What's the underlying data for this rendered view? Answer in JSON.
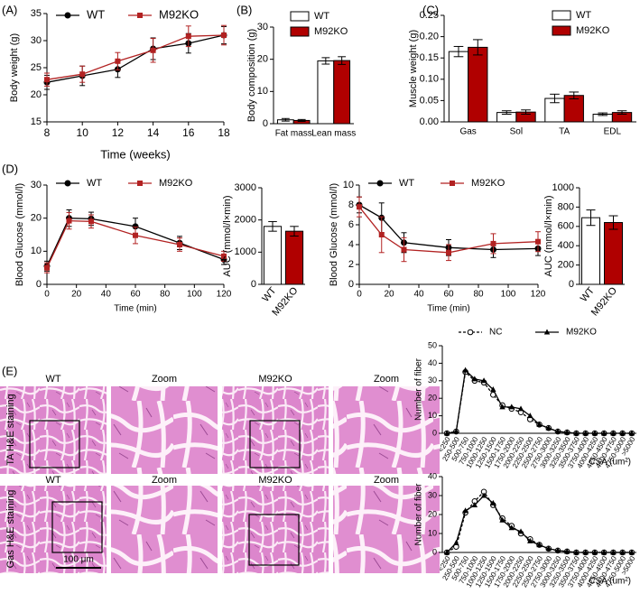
{
  "panel_labels": [
    "(A)",
    "(B)",
    "(C)",
    "(D)",
    "(E)"
  ],
  "histology": {
    "rows": [
      {
        "label": "TA H&E staining",
        "columns": [
          "WT",
          "Zoom",
          "M92KO",
          "Zoom"
        ]
      },
      {
        "label": "Gas H&E staining",
        "columns": [
          "WT",
          "Zoom",
          "M92KO",
          "Zoom"
        ]
      }
    ],
    "scale_bar": "100 μm"
  },
  "chart_data": [
    {
      "type": "line",
      "y_label": "Body weight (g)",
      "x_label": "Time (weeks)",
      "x": [
        8,
        10,
        12,
        14,
        16,
        18
      ],
      "xlim": [
        8,
        18
      ],
      "xticks": [
        8,
        10,
        12,
        14,
        16,
        18
      ],
      "ylim": [
        15,
        35
      ],
      "yticks": [
        15,
        20,
        25,
        30,
        35
      ],
      "legend": "top",
      "series": [
        {
          "name": "WT",
          "color": "#000000",
          "marker": "circle",
          "values": [
            22.3,
            23.5,
            24.7,
            28.5,
            29.5,
            31.0
          ],
          "errors": [
            1.3,
            1.8,
            1.5,
            2.0,
            1.8,
            1.6
          ]
        },
        {
          "name": "M92KO",
          "color": "#b22222",
          "marker": "square",
          "values": [
            22.8,
            23.8,
            26.2,
            28.2,
            30.8,
            31.0
          ],
          "errors": [
            1.2,
            1.5,
            1.6,
            2.2,
            1.9,
            1.8
          ]
        }
      ]
    },
    {
      "type": "bar",
      "y_label": "Body composition (g)",
      "categories": [
        "Fat mass",
        "Lean mass"
      ],
      "ylim": [
        0,
        30
      ],
      "yticks": [
        0,
        10,
        20,
        30
      ],
      "legend": "top",
      "series": [
        {
          "name": "WT",
          "color": "#ffffff",
          "values": [
            1.2,
            19.5
          ],
          "errors": [
            0.4,
            1.0
          ]
        },
        {
          "name": "M92KO",
          "color": "#b00000",
          "values": [
            1.0,
            19.6
          ],
          "errors": [
            0.3,
            1.2
          ]
        }
      ]
    },
    {
      "type": "bar",
      "y_label": "Muscle weight (g)",
      "categories": [
        "Gas",
        "Sol",
        "TA",
        "EDL"
      ],
      "ylim": [
        0,
        0.25
      ],
      "yticks": [
        {
          "value": 0,
          "label": "0.00"
        },
        0.05,
        {
          "value": 0.1,
          "label": "0.10"
        },
        0.15,
        {
          "value": 0.2,
          "label": "0.20"
        },
        0.25
      ],
      "legend": "top-right",
      "series": [
        {
          "name": "WT",
          "color": "#ffffff",
          "values": [
            0.165,
            0.022,
            0.055,
            0.018
          ],
          "errors": [
            0.012,
            0.004,
            0.01,
            0.003
          ]
        },
        {
          "name": "M92KO",
          "color": "#b00000",
          "values": [
            0.175,
            0.023,
            0.062,
            0.022
          ],
          "errors": [
            0.018,
            0.005,
            0.008,
            0.004
          ]
        }
      ]
    },
    {
      "type": "line",
      "y_label": "Blood Glucose (mmol/l)",
      "x_label": "Time (min)",
      "x": [
        0,
        15,
        30,
        60,
        90,
        120
      ],
      "xlim": [
        0,
        120
      ],
      "xticks": [
        0,
        20,
        40,
        60,
        80,
        100,
        120
      ],
      "ylim": [
        0,
        30
      ],
      "yticks": [
        0,
        10,
        20,
        30
      ],
      "legend": "top",
      "series": [
        {
          "name": "WT",
          "color": "#000000",
          "marker": "circle",
          "values": [
            5.5,
            20,
            19.8,
            17.5,
            12.5,
            7.5
          ],
          "errors": [
            1.5,
            2.5,
            2.0,
            2.5,
            2.0,
            1.5
          ]
        },
        {
          "name": "M92KO",
          "color": "#b22222",
          "marker": "square",
          "values": [
            5.0,
            19.2,
            19.0,
            14.8,
            12.0,
            8.5
          ],
          "errors": [
            1.5,
            2.5,
            2.0,
            2.5,
            2.0,
            1.5
          ]
        }
      ]
    },
    {
      "type": "bar",
      "y_label": "AUC (mmol/l×min)",
      "categories": [
        "WT",
        "M92KO"
      ],
      "values": [
        1800,
        1650
      ],
      "errors": [
        150,
        150
      ],
      "colors": [
        "#ffffff",
        "#b00000"
      ],
      "ylim": [
        0,
        3000
      ],
      "yticks": [
        0,
        1000,
        2000,
        3000
      ]
    },
    {
      "type": "line",
      "y_label": "Blood Glucose (mmol/l)",
      "x_label": "Time (min)",
      "x": [
        0,
        15,
        30,
        60,
        90,
        120
      ],
      "xlim": [
        0,
        120
      ],
      "xticks": [
        0,
        20,
        40,
        60,
        80,
        100,
        120
      ],
      "ylim": [
        0,
        10
      ],
      "yticks": [
        0,
        2,
        4,
        6,
        8,
        10
      ],
      "legend": "top",
      "series": [
        {
          "name": "WT",
          "color": "#000000",
          "marker": "circle",
          "values": [
            8.0,
            6.7,
            4.2,
            3.7,
            3.5,
            3.6
          ],
          "errors": [
            0.8,
            1.5,
            1.0,
            0.8,
            0.8,
            0.7
          ]
        },
        {
          "name": "M92KO",
          "color": "#b22222",
          "marker": "square",
          "values": [
            7.8,
            5.0,
            3.5,
            3.2,
            4.1,
            4.3
          ],
          "errors": [
            1.0,
            1.8,
            1.2,
            0.8,
            1.0,
            1.0
          ]
        }
      ]
    },
    {
      "type": "bar",
      "y_label": "AUC (mmol/l×min)",
      "categories": [
        "WT",
        "M92KO"
      ],
      "values": [
        690,
        640
      ],
      "errors": [
        80,
        70
      ],
      "colors": [
        "#ffffff",
        "#b00000"
      ],
      "ylim": [
        0,
        1000
      ],
      "yticks": [
        0,
        200,
        400,
        600,
        800,
        1000
      ]
    },
    {
      "type": "line",
      "y_label": "Number of fiber",
      "x_label": "CSA (um²)",
      "categories": [
        "<250",
        "250-500",
        "500-750",
        "750-1000",
        "1000-1250",
        "1250-1500",
        "1500-1750",
        "1750-2000",
        "2000-2250",
        "2250-2500",
        "2500-2750",
        "2750-3000",
        "3000-3250",
        "3250-3500",
        "3500-3750",
        "3750-4000",
        "4000-4250",
        "4250-4500",
        "4500-4750",
        "4750-5000",
        ">5000"
      ],
      "ylim": [
        0,
        50
      ],
      "yticks": [
        0,
        10,
        20,
        30,
        40,
        50
      ],
      "legend": "top",
      "series": [
        {
          "name": "NC",
          "color": "#000000",
          "marker": "open-circle",
          "dash": true,
          "values": [
            0,
            1,
            35,
            30,
            29,
            22,
            16,
            14,
            12,
            8,
            5,
            3,
            1,
            0.5,
            0,
            0,
            0,
            0,
            0,
            0,
            0
          ]
        },
        {
          "name": "M92KO",
          "color": "#000000",
          "marker": "triangle",
          "values": [
            0,
            1,
            36,
            31,
            30,
            25,
            15,
            15,
            14,
            10,
            5,
            3,
            1,
            0.5,
            0,
            0,
            0,
            0,
            0,
            0,
            0
          ]
        }
      ]
    },
    {
      "type": "line",
      "y_label": "Number of fiber",
      "x_label": "CSA (um²)",
      "categories": [
        "<250",
        "250-500",
        "500-750",
        "750-1000",
        "1000-1250",
        "1250-1500",
        "1500-1750",
        "1750-2000",
        "2000-2250",
        "2250-2500",
        "2500-2750",
        "2750-3000",
        "3000-3250",
        "3250-3500",
        "3500-3750",
        "3750-4000",
        "4000-4250",
        "4250-4500",
        "4500-4750",
        "4750-5000",
        ">5000"
      ],
      "ylim": [
        0,
        40
      ],
      "yticks": [
        0,
        10,
        20,
        30,
        40
      ],
      "series": [
        {
          "name": "NC",
          "color": "#000000",
          "marker": "open-circle",
          "dash": true,
          "values": [
            0,
            3,
            21,
            27,
            32,
            25,
            18,
            14,
            10,
            7,
            4,
            2,
            1,
            0.5,
            0,
            0,
            0,
            0,
            0,
            0,
            0
          ]
        },
        {
          "name": "M92KO",
          "color": "#000000",
          "marker": "triangle",
          "values": [
            0,
            5,
            22,
            25,
            30,
            26,
            17,
            13,
            11,
            6,
            4,
            2,
            1,
            0.5,
            0,
            0,
            0,
            0,
            0,
            0,
            0
          ]
        }
      ]
    }
  ]
}
